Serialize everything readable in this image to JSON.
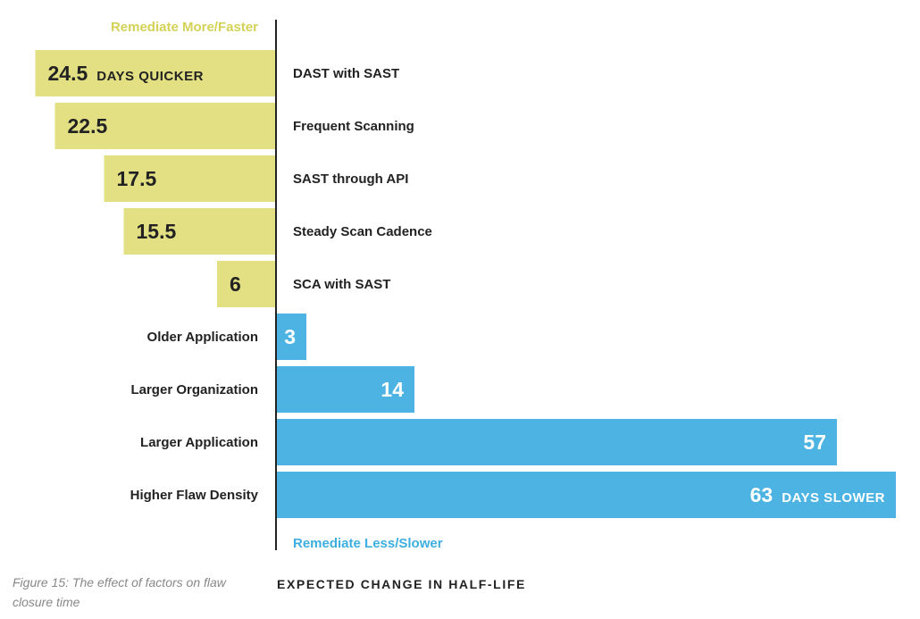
{
  "chart_data": {
    "type": "bar",
    "orientation": "horizontal-diverging",
    "categories": [
      "DAST with SAST",
      "Frequent Scanning",
      "SAST through API",
      "Steady Scan Cadence",
      "SCA with SAST",
      "Older Application",
      "Larger Organization",
      "Larger Application",
      "Higher Flaw Density"
    ],
    "values": [
      -24.5,
      -22.5,
      -17.5,
      -15.5,
      -6,
      3,
      14,
      57,
      63
    ],
    "value_labels": [
      "24.5",
      "22.5",
      "17.5",
      "15.5",
      "6",
      "3",
      "14",
      "57",
      "63"
    ],
    "value_suffix": {
      "0": "DAYS QUICKER",
      "8": "DAYS SLOWER"
    },
    "xlabel": "EXPECTED CHANGE IN HALF-LIFE",
    "top_direction_label": "Remediate More/Faster",
    "bottom_direction_label": "Remediate Less/Slower",
    "colors": {
      "faster": "#e2e083",
      "slower": "#4cb3e3",
      "faster_text": "#d4d256",
      "slower_text": "#3daee0",
      "axis": "#222222",
      "label": "#222222"
    },
    "grid": false,
    "legend": "none"
  },
  "caption": "Figure 15: The effect of factors on flaw closure time"
}
